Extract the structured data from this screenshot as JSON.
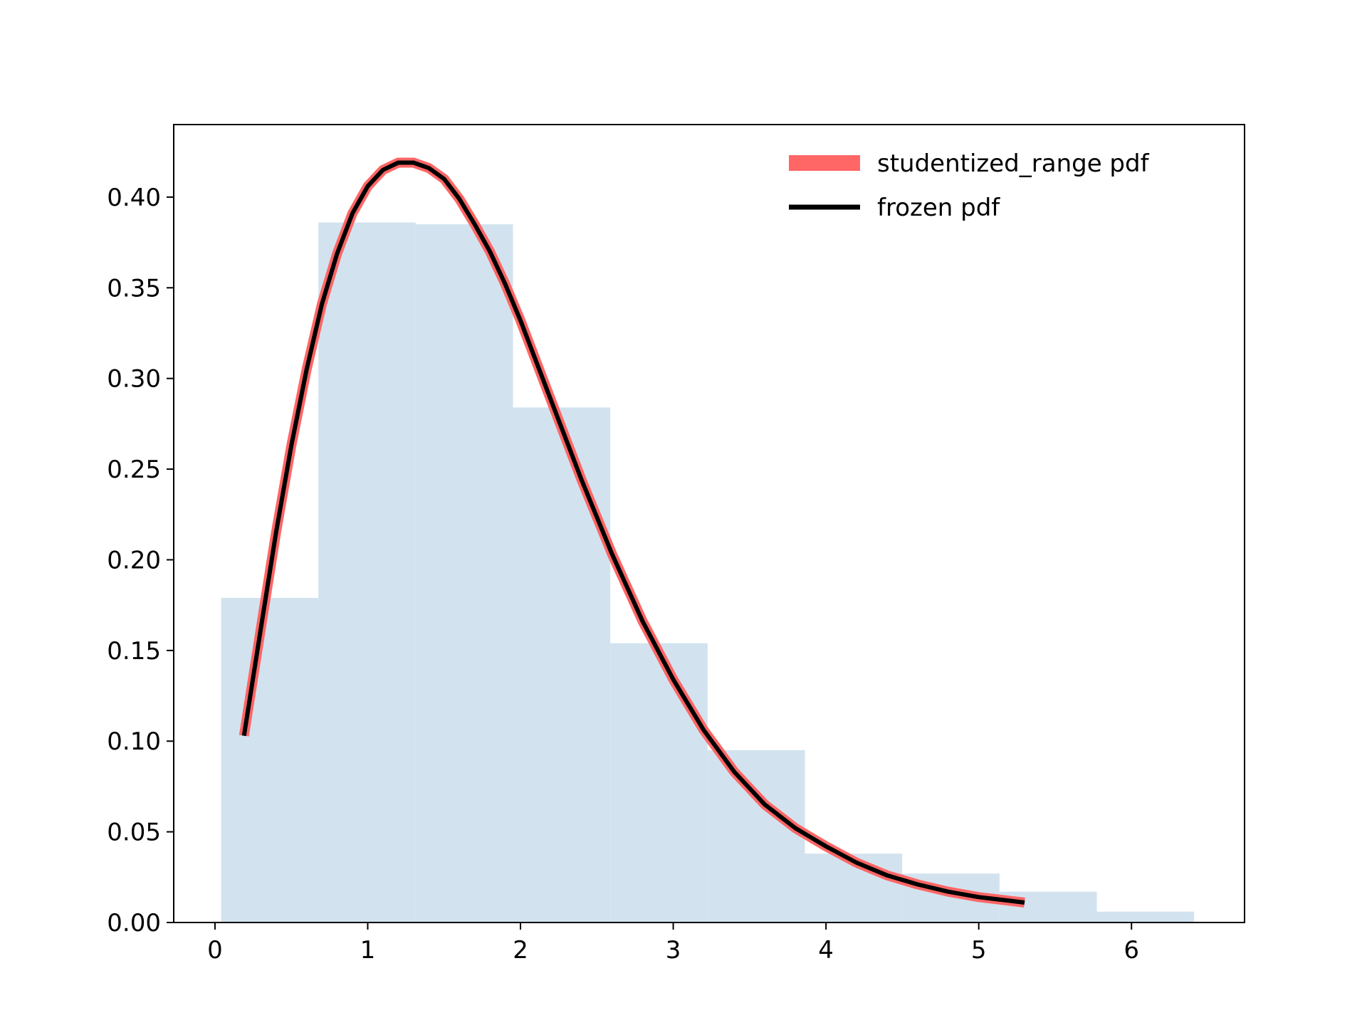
{
  "chart_data": {
    "type": "line",
    "title": "",
    "xlabel": "",
    "ylabel": "",
    "xlim": [
      -0.27,
      6.74
    ],
    "ylim": [
      0,
      0.44
    ],
    "xticks": [
      "0",
      "1",
      "2",
      "3",
      "4",
      "5",
      "6"
    ],
    "yticks": [
      "0.00",
      "0.05",
      "0.10",
      "0.15",
      "0.20",
      "0.25",
      "0.30",
      "0.35",
      "0.40"
    ],
    "grid": false,
    "legend_position": "upper right",
    "histogram": {
      "color": "#d2e3ef",
      "bin_edges": [
        0.04,
        0.677,
        1.314,
        1.951,
        2.588,
        3.225,
        3.862,
        4.499,
        5.136,
        5.773,
        6.41
      ],
      "heights": [
        0.179,
        0.386,
        0.385,
        0.284,
        0.154,
        0.095,
        0.038,
        0.027,
        0.017,
        0.006
      ]
    },
    "series": [
      {
        "name": "studentized_range pdf",
        "color": "#ff6666",
        "x": [
          0.19,
          0.3,
          0.4,
          0.5,
          0.6,
          0.7,
          0.8,
          0.9,
          1.0,
          1.1,
          1.2,
          1.3,
          1.4,
          1.5,
          1.6,
          1.7,
          1.8,
          1.9,
          2.0,
          2.2,
          2.4,
          2.6,
          2.8,
          3.0,
          3.2,
          3.4,
          3.6,
          3.8,
          4.0,
          4.2,
          4.4,
          4.6,
          4.8,
          5.0,
          5.2,
          5.3
        ],
        "y": [
          0.103,
          0.162,
          0.215,
          0.263,
          0.305,
          0.341,
          0.369,
          0.391,
          0.406,
          0.415,
          0.419,
          0.419,
          0.416,
          0.41,
          0.399,
          0.385,
          0.37,
          0.352,
          0.332,
          0.288,
          0.244,
          0.203,
          0.166,
          0.134,
          0.106,
          0.083,
          0.065,
          0.052,
          0.042,
          0.033,
          0.026,
          0.021,
          0.017,
          0.014,
          0.012,
          0.011
        ]
      },
      {
        "name": "frozen pdf",
        "color": "#000000",
        "x": [
          0.19,
          0.3,
          0.4,
          0.5,
          0.6,
          0.7,
          0.8,
          0.9,
          1.0,
          1.1,
          1.2,
          1.3,
          1.4,
          1.5,
          1.6,
          1.7,
          1.8,
          1.9,
          2.0,
          2.2,
          2.4,
          2.6,
          2.8,
          3.0,
          3.2,
          3.4,
          3.6,
          3.8,
          4.0,
          4.2,
          4.4,
          4.6,
          4.8,
          5.0,
          5.2,
          5.3
        ],
        "y": [
          0.103,
          0.162,
          0.215,
          0.263,
          0.305,
          0.341,
          0.369,
          0.391,
          0.406,
          0.415,
          0.419,
          0.419,
          0.416,
          0.41,
          0.399,
          0.385,
          0.37,
          0.352,
          0.332,
          0.288,
          0.244,
          0.203,
          0.166,
          0.134,
          0.106,
          0.083,
          0.065,
          0.052,
          0.042,
          0.033,
          0.026,
          0.021,
          0.017,
          0.014,
          0.012,
          0.011
        ]
      }
    ]
  }
}
